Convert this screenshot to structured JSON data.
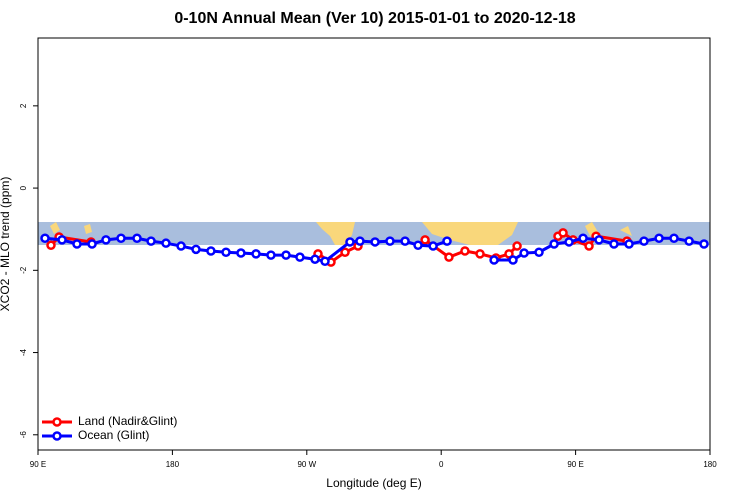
{
  "chart_data": {
    "type": "line",
    "title": "0-10N Annual Mean (Ver 10)   2015-01-01 to 2020-12-18",
    "x_label": "Longitude (deg E)",
    "y_label": "XCO2 - MLO trend (ppm)",
    "xlim": [
      90,
      540
    ],
    "ylim": [
      -6.37,
      3.65
    ],
    "xticks": [
      {
        "value": 90,
        "label": "90 E"
      },
      180,
      {
        "value": 270,
        "label": "90 W"
      },
      {
        "value": 360,
        "label": "0"
      },
      {
        "value": 450,
        "label": "90 E"
      },
      {
        "value": 540,
        "label": "180"
      }
    ],
    "yticks": [
      2,
      0,
      -2,
      -4,
      -6
    ],
    "legend": "bottom-left",
    "series": [
      {
        "name": "Land (Nadir&Glint)",
        "color": "#ff0000",
        "x": [
          98.7,
          104.1,
          125.5,
          null,
          277.5,
          286.2,
          295.6,
          304.3,
          null,
          349.2,
          365.2,
          375.9,
          386.0,
          396.7,
          405.4,
          410.8,
          null,
          438.2,
          441.6,
          448.3,
          459.0,
          463.7,
          484.4
        ],
        "values": [
          -1.39,
          -1.19,
          -1.31,
          null,
          -1.6,
          -1.8,
          -1.56,
          -1.41,
          null,
          -1.26,
          -1.68,
          -1.53,
          -1.6,
          -1.7,
          -1.6,
          -1.41,
          null,
          -1.17,
          -1.09,
          -1.26,
          -1.41,
          -1.17,
          -1.29
        ]
      },
      {
        "name": "Ocean (Glint)",
        "color": "#0000ff",
        "x": [
          94.7,
          106.1,
          116.1,
          126.2,
          135.5,
          145.6,
          156.3,
          165.7,
          175.7,
          185.8,
          195.8,
          205.8,
          215.9,
          225.9,
          236.0,
          246.0,
          256.1,
          265.4,
          275.5,
          282.2,
          298.9,
          305.6,
          315.7,
          325.7,
          335.8,
          344.5,
          354.6,
          363.9,
          null,
          395.4,
          408.1,
          415.5,
          425.5,
          435.6,
          445.6,
          455.0,
          465.7,
          475.7,
          485.8,
          495.8,
          505.9,
          515.9,
          526.0,
          536.0
        ],
        "values": [
          -1.22,
          -1.26,
          -1.36,
          -1.36,
          -1.26,
          -1.22,
          -1.22,
          -1.29,
          -1.34,
          -1.41,
          -1.49,
          -1.53,
          -1.56,
          -1.58,
          -1.6,
          -1.63,
          -1.63,
          -1.68,
          -1.73,
          -1.78,
          -1.31,
          -1.29,
          -1.31,
          -1.29,
          -1.29,
          -1.39,
          -1.41,
          -1.29,
          null,
          -1.75,
          -1.75,
          -1.58,
          -1.56,
          -1.36,
          -1.31,
          -1.22,
          -1.26,
          -1.36,
          -1.36,
          -1.29,
          -1.22,
          -1.22,
          -1.29,
          -1.36
        ]
      }
    ]
  }
}
